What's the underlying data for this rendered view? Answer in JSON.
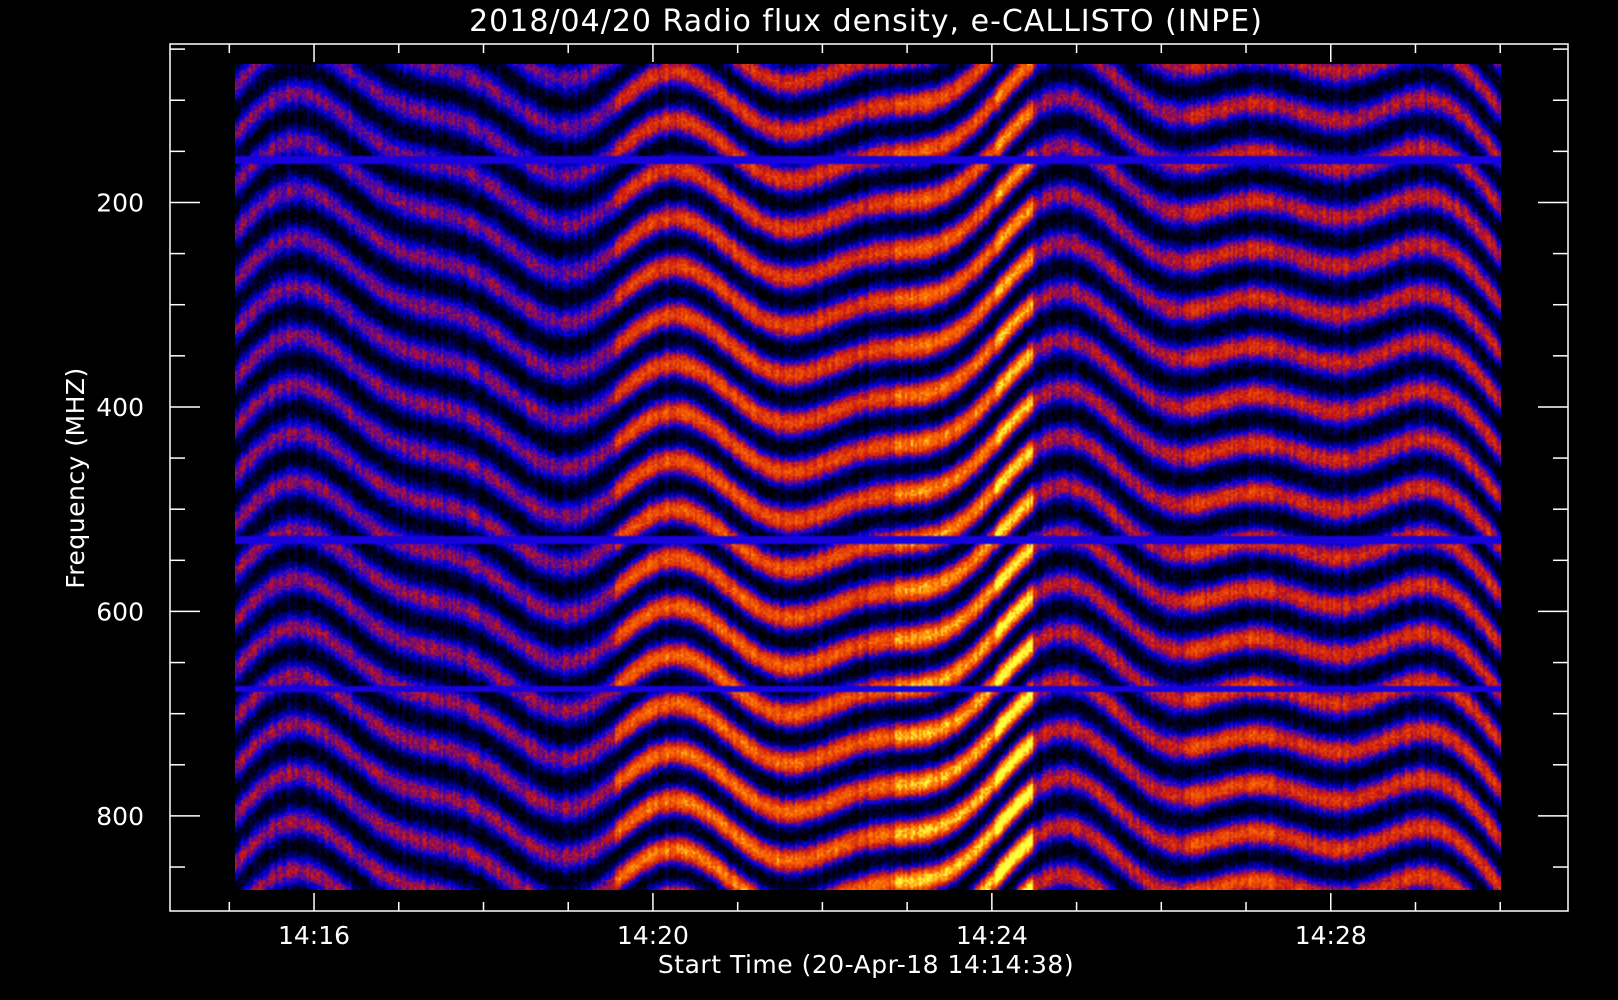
{
  "chart_data": {
    "type": "heatmap",
    "title": "2018/04/20  Radio flux density, e-CALLISTO (INPE)",
    "xlabel": "Start Time (20-Apr-18 14:14:38)",
    "ylabel": "Frequency (MHZ)",
    "x_ticks": [
      "14:16",
      "14:20",
      "14:24",
      "14:28"
    ],
    "x_tick_minutes": [
      16,
      20,
      24,
      28
    ],
    "x_range_minutes": [
      14.3,
      30.8
    ],
    "data_time_range_minutes": [
      15.0,
      30.0
    ],
    "y_ticks": [
      200,
      400,
      600,
      800
    ],
    "ylim": [
      893,
      45
    ],
    "data_frequency_range": [
      45,
      870
    ],
    "colormap": "black-blue-red-yellow",
    "colors": {
      "low": "#000000",
      "mid": "#2020ff",
      "high": "#ff2000",
      "peak": "#ffff40"
    },
    "grid": false
  }
}
